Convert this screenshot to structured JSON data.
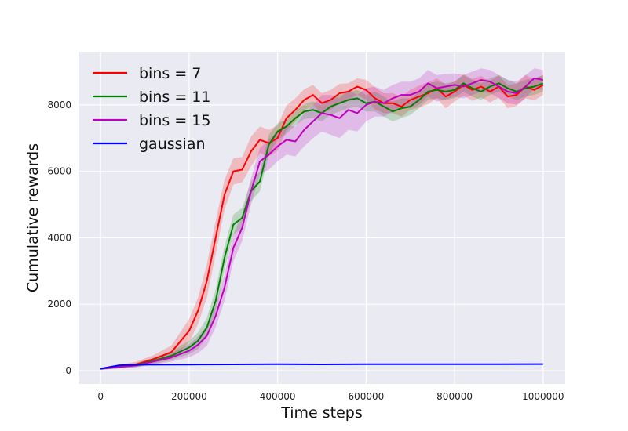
{
  "chart_data": {
    "type": "line",
    "title": "",
    "xlabel": "Time steps",
    "ylabel": "Cumulative rewards",
    "xlim": [
      -50000,
      1050000
    ],
    "ylim": [
      -400,
      9600
    ],
    "xticks": [
      0,
      200000,
      400000,
      600000,
      800000,
      1000000
    ],
    "xtick_labels": [
      "0",
      "200000",
      "400000",
      "600000",
      "800000",
      "1000000"
    ],
    "yticks": [
      0,
      2000,
      4000,
      6000,
      8000
    ],
    "ytick_labels": [
      "0",
      "2000",
      "4000",
      "6000",
      "8000"
    ],
    "grid": true,
    "legend_position": "top-left",
    "background": "#eaeaf2",
    "series": [
      {
        "name": "bins = 7",
        "color": "#ff0000",
        "points": [
          [
            0,
            60
          ],
          [
            40000,
            120
          ],
          [
            80000,
            190
          ],
          [
            120000,
            350
          ],
          [
            160000,
            560
          ],
          [
            200000,
            1200
          ],
          [
            220000,
            1800
          ],
          [
            240000,
            2700
          ],
          [
            260000,
            4000
          ],
          [
            280000,
            5300
          ],
          [
            300000,
            6000
          ],
          [
            320000,
            6050
          ],
          [
            340000,
            6600
          ],
          [
            360000,
            6950
          ],
          [
            380000,
            6850
          ],
          [
            400000,
            7000
          ],
          [
            420000,
            7600
          ],
          [
            440000,
            7850
          ],
          [
            460000,
            8150
          ],
          [
            480000,
            8300
          ],
          [
            500000,
            8050
          ],
          [
            520000,
            8150
          ],
          [
            540000,
            8350
          ],
          [
            560000,
            8400
          ],
          [
            580000,
            8550
          ],
          [
            600000,
            8450
          ],
          [
            620000,
            8200
          ],
          [
            640000,
            8050
          ],
          [
            660000,
            8050
          ],
          [
            680000,
            7950
          ],
          [
            700000,
            8150
          ],
          [
            720000,
            8250
          ],
          [
            740000,
            8350
          ],
          [
            760000,
            8500
          ],
          [
            780000,
            8250
          ],
          [
            800000,
            8400
          ],
          [
            820000,
            8600
          ],
          [
            840000,
            8450
          ],
          [
            860000,
            8550
          ],
          [
            880000,
            8400
          ],
          [
            900000,
            8550
          ],
          [
            920000,
            8250
          ],
          [
            940000,
            8300
          ],
          [
            960000,
            8550
          ],
          [
            980000,
            8450
          ],
          [
            1000000,
            8600
          ]
        ],
        "band": [
          [
            0,
            30
          ],
          [
            40000,
            50
          ],
          [
            80000,
            80
          ],
          [
            120000,
            120
          ],
          [
            160000,
            200
          ],
          [
            200000,
            350
          ],
          [
            220000,
            400
          ],
          [
            240000,
            500
          ],
          [
            260000,
            500
          ],
          [
            280000,
            450
          ],
          [
            300000,
            400
          ],
          [
            320000,
            380
          ],
          [
            340000,
            450
          ],
          [
            360000,
            400
          ],
          [
            380000,
            400
          ],
          [
            400000,
            380
          ],
          [
            420000,
            380
          ],
          [
            440000,
            350
          ],
          [
            460000,
            320
          ],
          [
            480000,
            300
          ],
          [
            500000,
            300
          ],
          [
            520000,
            300
          ],
          [
            540000,
            280
          ],
          [
            560000,
            250
          ],
          [
            580000,
            250
          ],
          [
            600000,
            300
          ],
          [
            620000,
            330
          ],
          [
            640000,
            300
          ],
          [
            660000,
            300
          ],
          [
            680000,
            300
          ],
          [
            700000,
            300
          ],
          [
            720000,
            330
          ],
          [
            740000,
            330
          ],
          [
            760000,
            300
          ],
          [
            780000,
            350
          ],
          [
            800000,
            300
          ],
          [
            820000,
            320
          ],
          [
            840000,
            330
          ],
          [
            860000,
            320
          ],
          [
            880000,
            330
          ],
          [
            900000,
            330
          ],
          [
            920000,
            350
          ],
          [
            940000,
            330
          ],
          [
            960000,
            350
          ],
          [
            980000,
            320
          ],
          [
            1000000,
            300
          ]
        ]
      },
      {
        "name": "bins = 11",
        "color": "#008000",
        "points": [
          [
            0,
            60
          ],
          [
            40000,
            110
          ],
          [
            80000,
            170
          ],
          [
            120000,
            300
          ],
          [
            160000,
            450
          ],
          [
            200000,
            700
          ],
          [
            220000,
            900
          ],
          [
            240000,
            1300
          ],
          [
            260000,
            2100
          ],
          [
            280000,
            3400
          ],
          [
            300000,
            4400
          ],
          [
            320000,
            4600
          ],
          [
            340000,
            5400
          ],
          [
            360000,
            5700
          ],
          [
            380000,
            6800
          ],
          [
            400000,
            7200
          ],
          [
            420000,
            7350
          ],
          [
            440000,
            7600
          ],
          [
            460000,
            7800
          ],
          [
            480000,
            7850
          ],
          [
            500000,
            7750
          ],
          [
            520000,
            7950
          ],
          [
            540000,
            8050
          ],
          [
            560000,
            8150
          ],
          [
            580000,
            8200
          ],
          [
            600000,
            8050
          ],
          [
            620000,
            8100
          ],
          [
            640000,
            7950
          ],
          [
            660000,
            7800
          ],
          [
            680000,
            7900
          ],
          [
            700000,
            7950
          ],
          [
            720000,
            8150
          ],
          [
            740000,
            8400
          ],
          [
            760000,
            8450
          ],
          [
            780000,
            8400
          ],
          [
            800000,
            8450
          ],
          [
            820000,
            8650
          ],
          [
            840000,
            8500
          ],
          [
            860000,
            8400
          ],
          [
            880000,
            8550
          ],
          [
            900000,
            8650
          ],
          [
            920000,
            8500
          ],
          [
            940000,
            8400
          ],
          [
            960000,
            8500
          ],
          [
            980000,
            8550
          ],
          [
            1000000,
            8650
          ]
        ],
        "band": [
          [
            0,
            30
          ],
          [
            40000,
            40
          ],
          [
            80000,
            60
          ],
          [
            120000,
            100
          ],
          [
            160000,
            130
          ],
          [
            200000,
            200
          ],
          [
            220000,
            250
          ],
          [
            240000,
            300
          ],
          [
            260000,
            350
          ],
          [
            280000,
            350
          ],
          [
            300000,
            300
          ],
          [
            320000,
            300
          ],
          [
            340000,
            300
          ],
          [
            360000,
            300
          ],
          [
            380000,
            300
          ],
          [
            400000,
            250
          ],
          [
            420000,
            220
          ],
          [
            440000,
            220
          ],
          [
            460000,
            220
          ],
          [
            480000,
            250
          ],
          [
            500000,
            250
          ],
          [
            520000,
            250
          ],
          [
            540000,
            250
          ],
          [
            560000,
            250
          ],
          [
            580000,
            250
          ],
          [
            600000,
            250
          ],
          [
            620000,
            300
          ],
          [
            640000,
            300
          ],
          [
            660000,
            300
          ],
          [
            680000,
            300
          ],
          [
            700000,
            250
          ],
          [
            720000,
            250
          ],
          [
            740000,
            250
          ],
          [
            760000,
            250
          ],
          [
            780000,
            250
          ],
          [
            800000,
            250
          ],
          [
            820000,
            250
          ],
          [
            840000,
            250
          ],
          [
            860000,
            250
          ],
          [
            880000,
            250
          ],
          [
            900000,
            250
          ],
          [
            920000,
            250
          ],
          [
            940000,
            250
          ],
          [
            960000,
            250
          ],
          [
            980000,
            250
          ],
          [
            1000000,
            250
          ]
        ]
      },
      {
        "name": "bins = 15",
        "color": "#bf00bf",
        "points": [
          [
            0,
            60
          ],
          [
            40000,
            110
          ],
          [
            80000,
            160
          ],
          [
            120000,
            280
          ],
          [
            160000,
            400
          ],
          [
            200000,
            600
          ],
          [
            220000,
            780
          ],
          [
            240000,
            1050
          ],
          [
            260000,
            1650
          ],
          [
            280000,
            2500
          ],
          [
            300000,
            3700
          ],
          [
            320000,
            4300
          ],
          [
            340000,
            5400
          ],
          [
            360000,
            6300
          ],
          [
            380000,
            6500
          ],
          [
            400000,
            6750
          ],
          [
            420000,
            6950
          ],
          [
            440000,
            6900
          ],
          [
            460000,
            7250
          ],
          [
            480000,
            7500
          ],
          [
            500000,
            7750
          ],
          [
            520000,
            7700
          ],
          [
            540000,
            7600
          ],
          [
            560000,
            7850
          ],
          [
            580000,
            7750
          ],
          [
            600000,
            8000
          ],
          [
            620000,
            8100
          ],
          [
            640000,
            8050
          ],
          [
            660000,
            8200
          ],
          [
            680000,
            8300
          ],
          [
            700000,
            8300
          ],
          [
            720000,
            8400
          ],
          [
            740000,
            8650
          ],
          [
            760000,
            8500
          ],
          [
            780000,
            8550
          ],
          [
            800000,
            8600
          ],
          [
            820000,
            8550
          ],
          [
            840000,
            8650
          ],
          [
            860000,
            8750
          ],
          [
            880000,
            8700
          ],
          [
            900000,
            8550
          ],
          [
            920000,
            8400
          ],
          [
            940000,
            8350
          ],
          [
            960000,
            8550
          ],
          [
            980000,
            8800
          ],
          [
            1000000,
            8750
          ]
        ],
        "band": [
          [
            0,
            30
          ],
          [
            40000,
            40
          ],
          [
            80000,
            60
          ],
          [
            120000,
            90
          ],
          [
            160000,
            130
          ],
          [
            200000,
            200
          ],
          [
            220000,
            250
          ],
          [
            240000,
            300
          ],
          [
            260000,
            350
          ],
          [
            280000,
            400
          ],
          [
            300000,
            400
          ],
          [
            320000,
            400
          ],
          [
            340000,
            400
          ],
          [
            360000,
            400
          ],
          [
            380000,
            450
          ],
          [
            400000,
            450
          ],
          [
            420000,
            450
          ],
          [
            440000,
            450
          ],
          [
            460000,
            500
          ],
          [
            480000,
            500
          ],
          [
            500000,
            550
          ],
          [
            520000,
            600
          ],
          [
            540000,
            600
          ],
          [
            560000,
            600
          ],
          [
            580000,
            550
          ],
          [
            600000,
            500
          ],
          [
            620000,
            450
          ],
          [
            640000,
            400
          ],
          [
            660000,
            400
          ],
          [
            680000,
            400
          ],
          [
            700000,
            400
          ],
          [
            720000,
            400
          ],
          [
            740000,
            400
          ],
          [
            760000,
            400
          ],
          [
            780000,
            380
          ],
          [
            800000,
            350
          ],
          [
            820000,
            350
          ],
          [
            840000,
            350
          ],
          [
            860000,
            350
          ],
          [
            880000,
            350
          ],
          [
            900000,
            350
          ],
          [
            920000,
            350
          ],
          [
            940000,
            350
          ],
          [
            960000,
            350
          ],
          [
            980000,
            300
          ],
          [
            1000000,
            300
          ]
        ]
      },
      {
        "name": "gaussian",
        "color": "#0000ff",
        "points": [
          [
            0,
            60
          ],
          [
            20000,
            110
          ],
          [
            40000,
            160
          ],
          [
            60000,
            170
          ],
          [
            80000,
            175
          ],
          [
            100000,
            180
          ],
          [
            200000,
            185
          ],
          [
            300000,
            190
          ],
          [
            400000,
            195
          ],
          [
            500000,
            190
          ],
          [
            600000,
            195
          ],
          [
            700000,
            195
          ],
          [
            800000,
            195
          ],
          [
            900000,
            195
          ],
          [
            1000000,
            200
          ]
        ],
        "band": [
          [
            0,
            10
          ],
          [
            1000000,
            10
          ]
        ]
      }
    ]
  }
}
